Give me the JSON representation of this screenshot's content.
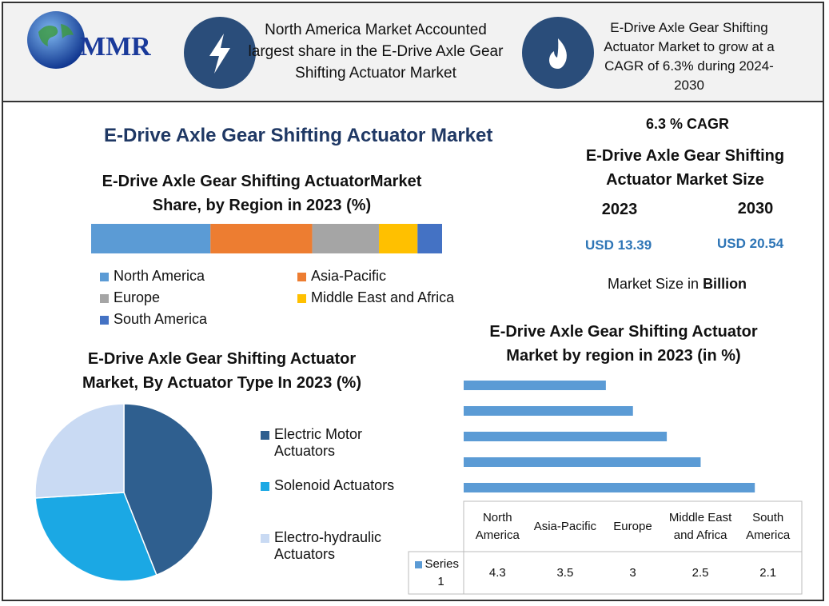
{
  "header": {
    "logo": "MMR",
    "card1": "North America Market Accounted largest share in the E-Drive Axle Gear Shifting Actuator Market",
    "card2": "E-Drive Axle Gear Shifting Actuator Market to grow at a CAGR of 6.3% during 2024-2030"
  },
  "title": "E-Drive Axle Gear Shifting Actuator Market",
  "summary": {
    "cagr": "6.3 % CAGR",
    "size_title": "E-Drive Axle Gear Shifting Actuator Market Size",
    "years": [
      "2023",
      "2030"
    ],
    "sizes": [
      "USD 13.39",
      "USD 20.54"
    ],
    "unit_note": "Market Size in",
    "unit": "Billion"
  },
  "chart_data": [
    {
      "type": "stacked_bar",
      "title": "E-Drive Axle Gear Shifting ActuatorMarket Share, by Region in 2023 (%)",
      "xlim": [
        0,
        100
      ],
      "series": [
        {
          "name": "North America",
          "color": "#5b9bd5",
          "values": [
            34
          ]
        },
        {
          "name": "Asia-Pacific",
          "color": "#ed7d31",
          "values": [
            29
          ]
        },
        {
          "name": "Europe",
          "color": "#a5a5a5",
          "values": [
            19
          ]
        },
        {
          "name": "Middle East and Africa",
          "color": "#ffc000",
          "values": [
            11
          ]
        },
        {
          "name": "South America",
          "color": "#4472c4",
          "values": [
            7
          ]
        }
      ]
    },
    {
      "type": "pie",
      "title": "E-Drive Axle Gear Shifting Actuator Market, By Actuator Type In 2023 (%)",
      "categories": [
        "Electric Motor Actuators",
        "Solenoid Actuators",
        "Electro-hydraulic Actuators"
      ],
      "values": [
        44,
        30,
        26
      ],
      "colors": [
        "#2f5f8f",
        "#1ba8e4",
        "#c9daf3"
      ]
    },
    {
      "type": "hbar_table",
      "title": "E-Drive Axle Gear Shifting Actuator Market by region in 2023 (in %)",
      "categories": [
        "North America",
        "Asia-Pacific",
        "Europe",
        "Middle East and Africa",
        "South America"
      ],
      "series": [
        {
          "name": "Series 1",
          "color": "#5b9bd5",
          "values": [
            4.3,
            3.5,
            3,
            2.5,
            2.1
          ]
        }
      ]
    }
  ]
}
